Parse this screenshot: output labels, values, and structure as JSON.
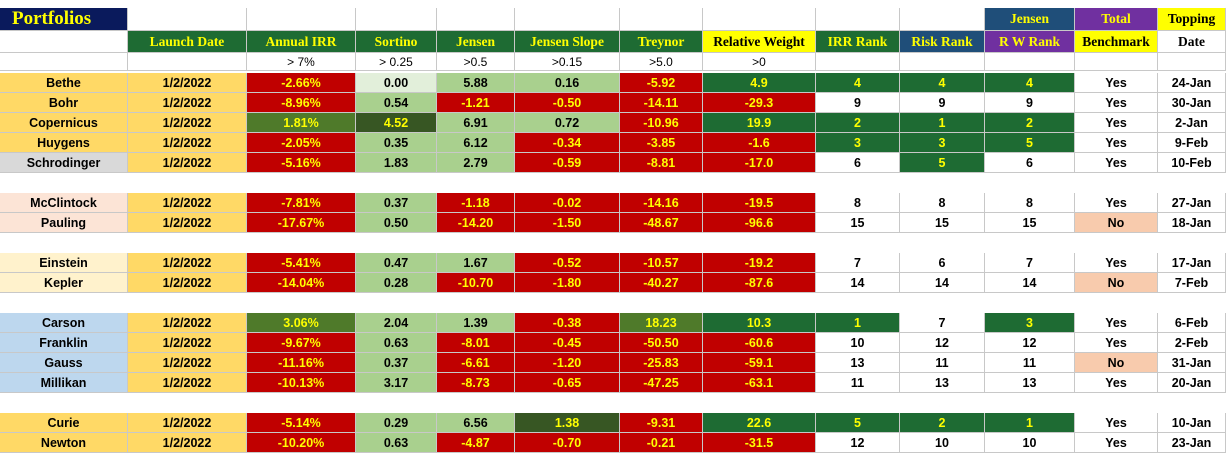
{
  "title": "Portfolios",
  "colors": {
    "navy": "#0a1a5c",
    "header_green": "#1e6b33",
    "header_text": "#ffff00",
    "relative_weight_header": "#ffff00",
    "jensen_risk_header": "#1f4e79",
    "total_rw_header": "#7030a0",
    "topping_header": "#ffff00",
    "red": "#c00000",
    "dark_green": "#1e6b33",
    "light_green": "#a9d08e",
    "very_light_green": "#e2efda",
    "olive": "#375623",
    "mid_green": "#4f7a2a",
    "no_fill": "#f8cbad",
    "name_yellow": "#ffd966",
    "name_gray": "#d9d9d9",
    "name_pink": "#fce4d6",
    "name_light_yellow": "#fff2cc",
    "name_blue": "#bdd7ee"
  },
  "headers": {
    "top": {
      "jensen": "Jensen",
      "total": "Total",
      "topping": "Topping"
    },
    "columns": [
      "Launch Date",
      "Annual IRR",
      "Sortino",
      "Jensen",
      "Jensen Slope",
      "Treynor",
      "Relative Weight",
      "IRR Rank",
      "Risk Rank",
      "R W Rank",
      "Benchmark",
      "Date"
    ],
    "thresholds": [
      "> 7%",
      "> 0.25",
      ">0.5",
      ">0.15",
      ">5.0",
      ">0"
    ]
  },
  "rows": [
    {
      "name": "Bethe",
      "launch": "1/2/2022",
      "irr": "-2.66%",
      "sortino": "0.00",
      "jensen": "5.88",
      "slope": "0.16",
      "treynor": "-5.92",
      "rw": "4.9",
      "irr_rank": "4",
      "risk_rank": "4",
      "rw_rank": "4",
      "bench": "Yes",
      "date": "24-Jan"
    },
    {
      "name": "Bohr",
      "launch": "1/2/2022",
      "irr": "-8.96%",
      "sortino": "0.54",
      "jensen": "-1.21",
      "slope": "-0.50",
      "treynor": "-14.11",
      "rw": "-29.3",
      "irr_rank": "9",
      "risk_rank": "9",
      "rw_rank": "9",
      "bench": "Yes",
      "date": "30-Jan"
    },
    {
      "name": "Copernicus",
      "launch": "1/2/2022",
      "irr": "1.81%",
      "sortino": "4.52",
      "jensen": "6.91",
      "slope": "0.72",
      "treynor": "-10.96",
      "rw": "19.9",
      "irr_rank": "2",
      "risk_rank": "1",
      "rw_rank": "2",
      "bench": "Yes",
      "date": "2-Jan"
    },
    {
      "name": "Huygens",
      "launch": "1/2/2022",
      "irr": "-2.05%",
      "sortino": "0.35",
      "jensen": "6.12",
      "slope": "-0.34",
      "treynor": "-3.85",
      "rw": "-1.6",
      "irr_rank": "3",
      "risk_rank": "3",
      "rw_rank": "5",
      "bench": "Yes",
      "date": "9-Feb"
    },
    {
      "name": "Schrodinger",
      "launch": "1/2/2022",
      "irr": "-5.16%",
      "sortino": "1.83",
      "jensen": "2.79",
      "slope": "-0.59",
      "treynor": "-8.81",
      "rw": "-17.0",
      "irr_rank": "6",
      "risk_rank": "5",
      "rw_rank": "6",
      "bench": "Yes",
      "date": "10-Feb"
    },
    {
      "name": "McClintock",
      "launch": "1/2/2022",
      "irr": "-7.81%",
      "sortino": "0.37",
      "jensen": "-1.18",
      "slope": "-0.02",
      "treynor": "-14.16",
      "rw": "-19.5",
      "irr_rank": "8",
      "risk_rank": "8",
      "rw_rank": "8",
      "bench": "Yes",
      "date": "27-Jan"
    },
    {
      "name": "Pauling",
      "launch": "1/2/2022",
      "irr": "-17.67%",
      "sortino": "0.50",
      "jensen": "-14.20",
      "slope": "-1.50",
      "treynor": "-48.67",
      "rw": "-96.6",
      "irr_rank": "15",
      "risk_rank": "15",
      "rw_rank": "15",
      "bench": "No",
      "date": "18-Jan"
    },
    {
      "name": "Einstein",
      "launch": "1/2/2022",
      "irr": "-5.41%",
      "sortino": "0.47",
      "jensen": "1.67",
      "slope": "-0.52",
      "treynor": "-10.57",
      "rw": "-19.2",
      "irr_rank": "7",
      "risk_rank": "6",
      "rw_rank": "7",
      "bench": "Yes",
      "date": "17-Jan"
    },
    {
      "name": "Kepler",
      "launch": "1/2/2022",
      "irr": "-14.04%",
      "sortino": "0.28",
      "jensen": "-10.70",
      "slope": "-1.80",
      "treynor": "-40.27",
      "rw": "-87.6",
      "irr_rank": "14",
      "risk_rank": "14",
      "rw_rank": "14",
      "bench": "No",
      "date": "7-Feb"
    },
    {
      "name": "Carson",
      "launch": "1/2/2022",
      "irr": "3.06%",
      "sortino": "2.04",
      "jensen": "1.39",
      "slope": "-0.38",
      "treynor": "18.23",
      "rw": "10.3",
      "irr_rank": "1",
      "risk_rank": "7",
      "rw_rank": "3",
      "bench": "Yes",
      "date": "6-Feb"
    },
    {
      "name": "Franklin",
      "launch": "1/2/2022",
      "irr": "-9.67%",
      "sortino": "0.63",
      "jensen": "-8.01",
      "slope": "-0.45",
      "treynor": "-50.50",
      "rw": "-60.6",
      "irr_rank": "10",
      "risk_rank": "12",
      "rw_rank": "12",
      "bench": "Yes",
      "date": "2-Feb"
    },
    {
      "name": "Gauss",
      "launch": "1/2/2022",
      "irr": "-11.16%",
      "sortino": "0.37",
      "jensen": "-6.61",
      "slope": "-1.20",
      "treynor": "-25.83",
      "rw": "-59.1",
      "irr_rank": "13",
      "risk_rank": "11",
      "rw_rank": "11",
      "bench": "No",
      "date": "31-Jan"
    },
    {
      "name": "Millikan",
      "launch": "1/2/2022",
      "irr": "-10.13%",
      "sortino": "3.17",
      "jensen": "-8.73",
      "slope": "-0.65",
      "treynor": "-47.25",
      "rw": "-63.1",
      "irr_rank": "11",
      "risk_rank": "13",
      "rw_rank": "13",
      "bench": "Yes",
      "date": "20-Jan"
    },
    {
      "name": "Curie",
      "launch": "1/2/2022",
      "irr": "-5.14%",
      "sortino": "0.29",
      "jensen": "6.56",
      "slope": "1.38",
      "treynor": "-9.31",
      "rw": "22.6",
      "irr_rank": "5",
      "risk_rank": "2",
      "rw_rank": "1",
      "bench": "Yes",
      "date": "10-Jan"
    },
    {
      "name": "Newton",
      "launch": "1/2/2022",
      "irr": "-10.20%",
      "sortino": "0.63",
      "jensen": "-4.87",
      "slope": "-0.70",
      "treynor": "-0.21",
      "rw": "-31.5",
      "irr_rank": "12",
      "risk_rank": "10",
      "rw_rank": "10",
      "bench": "Yes",
      "date": "23-Jan"
    }
  ]
}
